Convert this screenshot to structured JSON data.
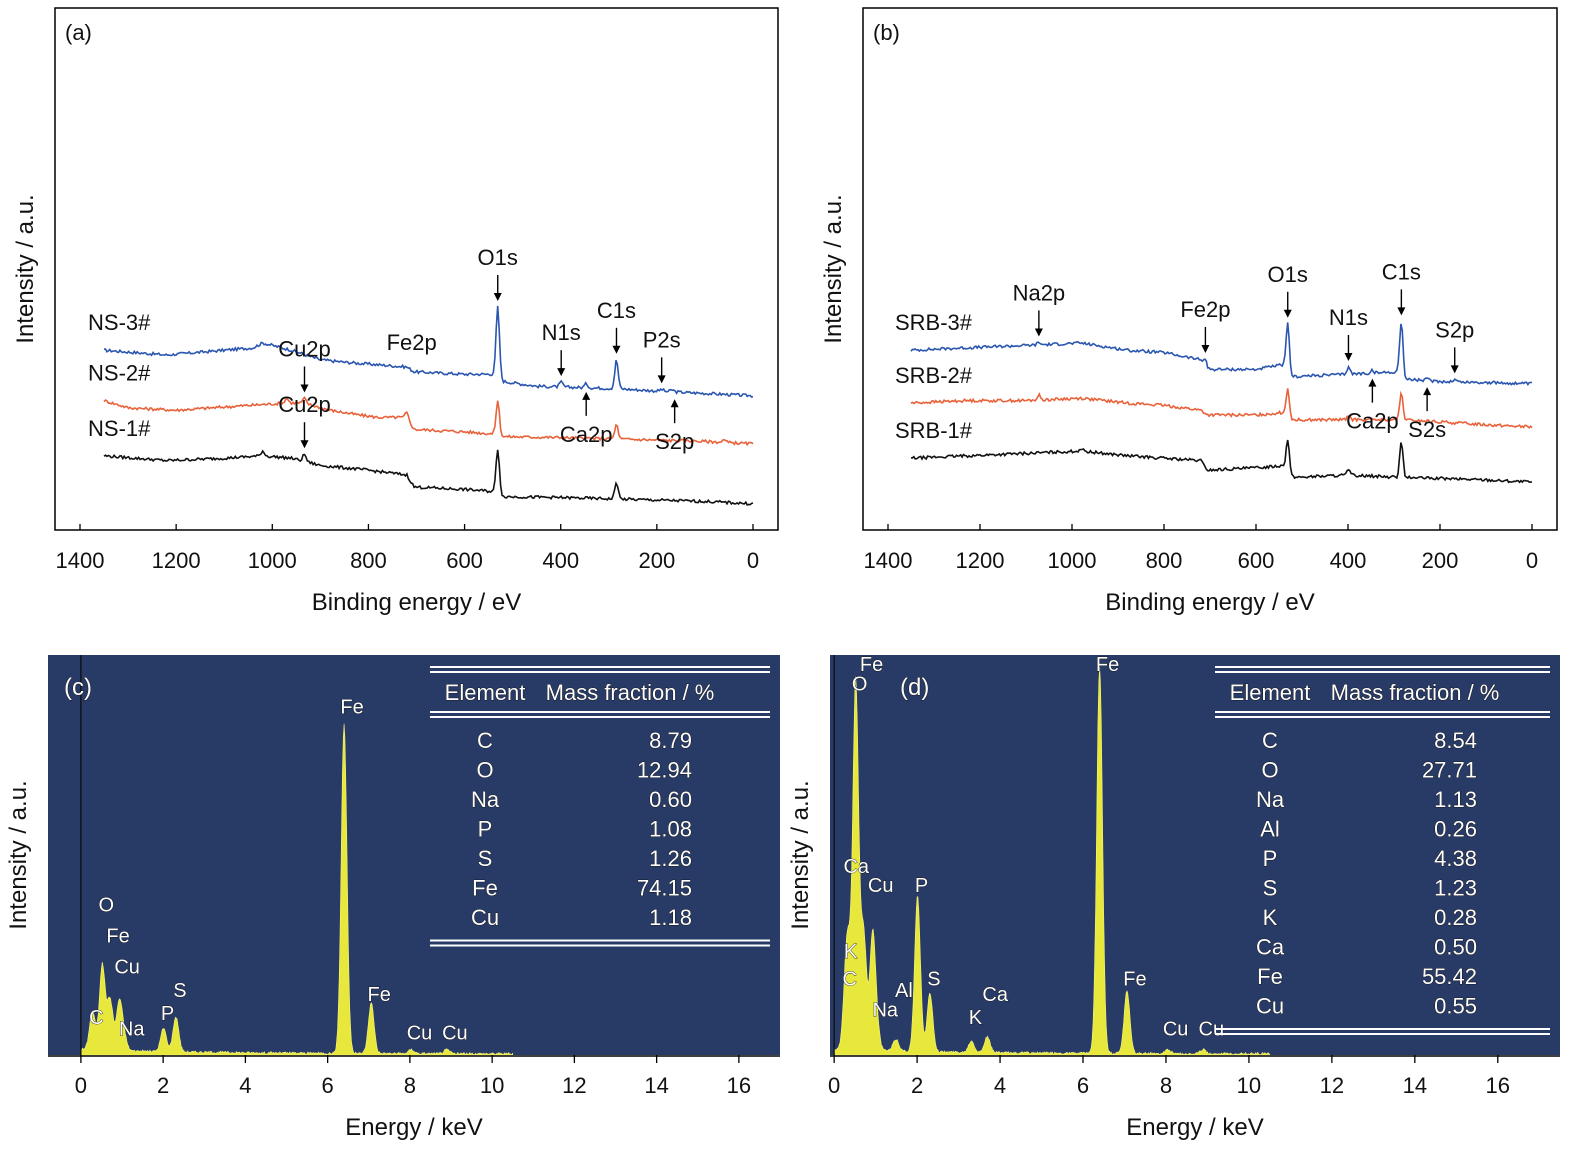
{
  "chart_data": [
    {
      "panel": "(a)",
      "type": "line",
      "xlabel": "Binding energy / eV",
      "ylabel": "Intensity / a.u.",
      "xlim": [
        1400,
        0
      ],
      "x_reversed": true,
      "xticks": [
        1400,
        1200,
        1000,
        800,
        600,
        400,
        200,
        0
      ],
      "series": [
        {
          "name": "NS-3#",
          "color": "#2a56b0",
          "offset": 2.6,
          "features": [
            [
              1350,
              0
            ],
            [
              1220,
              -0.1
            ],
            [
              1040,
              0.05
            ],
            [
              1020,
              0.15
            ],
            [
              960,
              0.0
            ],
            [
              900,
              -0.2
            ],
            [
              850,
              -0.25
            ],
            [
              720,
              -0.35
            ],
            [
              705,
              -0.45
            ],
            [
              600,
              -0.5
            ],
            [
              531,
              -0.5
            ],
            [
              520,
              -0.65
            ],
            [
              450,
              -0.75
            ],
            [
              284,
              -0.8
            ],
            [
              200,
              -0.85
            ],
            [
              0,
              -0.95
            ]
          ],
          "peaks": [
            [
              531,
              1.4
            ],
            [
              399,
              0.1
            ],
            [
              347,
              0.08
            ],
            [
              284,
              0.6
            ],
            [
              190,
              0.04
            ],
            [
              168,
              0.04
            ]
          ]
        },
        {
          "name": "NS-2#",
          "color": "#e8623a",
          "offset": 1.5,
          "features": [
            [
              1350,
              0.05
            ],
            [
              1300,
              -0.1
            ],
            [
              1200,
              -0.15
            ],
            [
              1050,
              -0.05
            ],
            [
              970,
              0.0
            ],
            [
              935,
              0.0
            ],
            [
              880,
              -0.15
            ],
            [
              820,
              -0.25
            ],
            [
              780,
              -0.3
            ],
            [
              720,
              -0.3
            ],
            [
              705,
              -0.55
            ],
            [
              600,
              -0.6
            ],
            [
              531,
              -0.65
            ],
            [
              520,
              -0.7
            ],
            [
              400,
              -0.72
            ],
            [
              284,
              -0.75
            ],
            [
              100,
              -0.8
            ],
            [
              0,
              -0.85
            ]
          ],
          "peaks": [
            [
              970,
              0.1
            ],
            [
              933,
              0.1
            ],
            [
              720,
              0.1
            ],
            [
              531,
              0.7
            ],
            [
              284,
              0.3
            ],
            [
              60,
              0.05
            ]
          ]
        },
        {
          "name": "NS-1#",
          "color": "#111111",
          "offset": 0.35,
          "features": [
            [
              1350,
              0.05
            ],
            [
              1220,
              -0.05
            ],
            [
              1100,
              0.0
            ],
            [
              1020,
              0.05
            ],
            [
              960,
              0.0
            ],
            [
              900,
              -0.15
            ],
            [
              800,
              -0.25
            ],
            [
              720,
              -0.35
            ],
            [
              705,
              -0.6
            ],
            [
              600,
              -0.65
            ],
            [
              531,
              -0.7
            ],
            [
              520,
              -0.8
            ],
            [
              400,
              -0.82
            ],
            [
              284,
              -0.85
            ],
            [
              100,
              -0.9
            ],
            [
              0,
              -0.95
            ]
          ],
          "peaks": [
            [
              1020,
              0.1
            ],
            [
              933,
              0.15
            ],
            [
              531,
              0.9
            ],
            [
              284,
              0.35
            ]
          ]
        }
      ],
      "annotations": [
        {
          "text": "O1s",
          "x": 531,
          "dir": "down"
        },
        {
          "text": "Fe2p",
          "x": 710,
          "dir": "none"
        },
        {
          "text": "N1s",
          "x": 399,
          "dir": "down"
        },
        {
          "text": "C1s",
          "x": 284,
          "dir": "down"
        },
        {
          "text": "P2s",
          "x": 190,
          "dir": "down"
        },
        {
          "text": "Ca2p",
          "x": 347,
          "dir": "up"
        },
        {
          "text": "S2p",
          "x": 163,
          "dir": "up"
        },
        {
          "text": "Cu2p",
          "x": 933,
          "dir": "down"
        },
        {
          "text": "Cu2p",
          "x": 933,
          "dir": "down"
        }
      ]
    },
    {
      "panel": "(b)",
      "type": "line",
      "xlabel": "Binding energy / eV",
      "ylabel": "Intensity / a.u.",
      "xlim": [
        1400,
        0
      ],
      "x_reversed": true,
      "xticks": [
        1400,
        1200,
        1000,
        800,
        600,
        400,
        200,
        0
      ],
      "series": [
        {
          "name": "SRB-3#",
          "color": "#2a56b0",
          "offset": 2.6,
          "features": [
            [
              1350,
              0
            ],
            [
              1230,
              0.05
            ],
            [
              1100,
              0.1
            ],
            [
              980,
              0.15
            ],
            [
              880,
              0.0
            ],
            [
              800,
              -0.05
            ],
            [
              720,
              -0.2
            ],
            [
              705,
              -0.4
            ],
            [
              600,
              -0.4
            ],
            [
              540,
              -0.3
            ],
            [
              531,
              -0.45
            ],
            [
              520,
              -0.55
            ],
            [
              400,
              -0.5
            ],
            [
              290,
              -0.45
            ],
            [
              284,
              -0.6
            ],
            [
              200,
              -0.65
            ],
            [
              0,
              -0.7
            ]
          ],
          "peaks": [
            [
              1072,
              0.05
            ],
            [
              710,
              0.15
            ],
            [
              531,
              1.0
            ],
            [
              399,
              0.15
            ],
            [
              347,
              0.05
            ],
            [
              284,
              1.2
            ],
            [
              228,
              0.03
            ],
            [
              168,
              0.05
            ]
          ]
        },
        {
          "name": "SRB-2#",
          "color": "#e8623a",
          "offset": 1.5,
          "features": [
            [
              1350,
              0
            ],
            [
              1230,
              0.05
            ],
            [
              1100,
              0.05
            ],
            [
              980,
              0.1
            ],
            [
              880,
              0.0
            ],
            [
              800,
              -0.05
            ],
            [
              720,
              -0.15
            ],
            [
              705,
              -0.25
            ],
            [
              600,
              -0.25
            ],
            [
              540,
              -0.2
            ],
            [
              531,
              -0.3
            ],
            [
              520,
              -0.35
            ],
            [
              400,
              -0.35
            ],
            [
              284,
              -0.35
            ],
            [
              100,
              -0.45
            ],
            [
              0,
              -0.5
            ]
          ],
          "peaks": [
            [
              1072,
              0.1
            ],
            [
              531,
              0.6
            ],
            [
              399,
              0.1
            ],
            [
              284,
              0.55
            ]
          ]
        },
        {
          "name": "SRB-1#",
          "color": "#111111",
          "offset": 0.35,
          "features": [
            [
              1350,
              0
            ],
            [
              1230,
              0.05
            ],
            [
              1100,
              0.1
            ],
            [
              980,
              0.15
            ],
            [
              880,
              0.05
            ],
            [
              800,
              0.0
            ],
            [
              720,
              -0.05
            ],
            [
              705,
              -0.25
            ],
            [
              600,
              -0.2
            ],
            [
              540,
              -0.15
            ],
            [
              531,
              -0.3
            ],
            [
              520,
              -0.4
            ],
            [
              400,
              -0.35
            ],
            [
              284,
              -0.4
            ],
            [
              100,
              -0.45
            ],
            [
              0,
              -0.5
            ]
          ],
          "peaks": [
            [
              980,
              0.05
            ],
            [
              531,
              0.7
            ],
            [
              399,
              0.1
            ],
            [
              284,
              0.75
            ]
          ]
        }
      ],
      "annotations": [
        {
          "text": "Na2p",
          "x": 1072,
          "dir": "down"
        },
        {
          "text": "Fe2p",
          "x": 710,
          "dir": "down"
        },
        {
          "text": "O1s",
          "x": 531,
          "dir": "down"
        },
        {
          "text": "N1s",
          "x": 399,
          "dir": "down"
        },
        {
          "text": "C1s",
          "x": 284,
          "dir": "down"
        },
        {
          "text": "S2p",
          "x": 168,
          "dir": "down"
        },
        {
          "text": "Ca2p",
          "x": 347,
          "dir": "up"
        },
        {
          "text": "S2s",
          "x": 228,
          "dir": "up"
        }
      ]
    },
    {
      "panel": "(c)",
      "type": "area",
      "xlabel": "Energy / keV",
      "ylabel": "Intensity / a.u.",
      "xlim": [
        -0.8,
        17
      ],
      "xticks": [
        0,
        2,
        4,
        6,
        8,
        10,
        12,
        14,
        16
      ],
      "background": "#283a66",
      "fill": "#e8e83c",
      "peaks": [
        [
          0.28,
          0.1
        ],
        [
          0.52,
          0.22
        ],
        [
          0.71,
          0.13
        ],
        [
          0.93,
          0.12
        ],
        [
          1.04,
          0.04
        ],
        [
          2.01,
          0.06
        ],
        [
          2.31,
          0.09
        ],
        [
          6.4,
          0.85
        ],
        [
          7.06,
          0.13
        ],
        [
          8.04,
          0.01
        ],
        [
          8.9,
          0.01
        ]
      ],
      "peak_labels": [
        {
          "text": "O",
          "x": 0.52,
          "level": 0.38
        },
        {
          "text": "Fe",
          "x": 0.71,
          "level": 0.3
        },
        {
          "text": "Cu",
          "x": 0.93,
          "level": 0.22
        },
        {
          "text": "C",
          "x": 0.28,
          "level": 0.09
        },
        {
          "text": "Na",
          "x": 1.04,
          "level": 0.06
        },
        {
          "text": "P",
          "x": 2.01,
          "level": 0.1
        },
        {
          "text": "S",
          "x": 2.31,
          "level": 0.16
        },
        {
          "text": "Fe",
          "x": 6.4,
          "level": 0.89
        },
        {
          "text": "Fe",
          "x": 7.06,
          "level": 0.15
        },
        {
          "text": "Cu",
          "x": 8.04,
          "level": 0.05
        },
        {
          "text": "Cu",
          "x": 8.9,
          "level": 0.05
        }
      ],
      "table": {
        "headers": [
          "Element",
          "Mass fraction / %"
        ],
        "rows": [
          [
            "C",
            "8.79"
          ],
          [
            "O",
            "12.94"
          ],
          [
            "Na",
            "0.60"
          ],
          [
            "P",
            "1.08"
          ],
          [
            "S",
            "1.26"
          ],
          [
            "Fe",
            "74.15"
          ],
          [
            "Cu",
            "1.18"
          ]
        ]
      }
    },
    {
      "panel": "(d)",
      "type": "area",
      "xlabel": "Energy / keV",
      "ylabel": "Intensity / a.u.",
      "xlim": [
        -0.1,
        17.5
      ],
      "xticks": [
        0,
        2,
        4,
        6,
        8,
        10,
        12,
        14,
        16
      ],
      "background": "#283a66",
      "fill": "#e8e83c",
      "peaks": [
        [
          0.28,
          0.12
        ],
        [
          0.34,
          0.2
        ],
        [
          0.52,
          0.95
        ],
        [
          0.71,
          0.3
        ],
        [
          0.93,
          0.3
        ],
        [
          1.04,
          0.04
        ],
        [
          1.49,
          0.03
        ],
        [
          2.01,
          0.4
        ],
        [
          2.31,
          0.15
        ],
        [
          3.31,
          0.03
        ],
        [
          3.69,
          0.04
        ],
        [
          6.4,
          1.0
        ],
        [
          7.06,
          0.16
        ],
        [
          8.04,
          0.01
        ],
        [
          8.9,
          0.01
        ]
      ],
      "peak_labels": [
        {
          "text": "Fe",
          "x": 0.71,
          "level": 1.0
        },
        {
          "text": "O",
          "x": 0.52,
          "level": 0.95
        },
        {
          "text": "Ca",
          "x": 0.34,
          "level": 0.48
        },
        {
          "text": "Cu",
          "x": 0.93,
          "level": 0.43
        },
        {
          "text": "K",
          "x": 0.3,
          "level": 0.26
        },
        {
          "text": "C",
          "x": 0.28,
          "level": 0.19
        },
        {
          "text": "Na",
          "x": 1.04,
          "level": 0.11
        },
        {
          "text": "Al",
          "x": 1.49,
          "level": 0.16
        },
        {
          "text": "P",
          "x": 2.01,
          "level": 0.43
        },
        {
          "text": "S",
          "x": 2.31,
          "level": 0.19
        },
        {
          "text": "K",
          "x": 3.31,
          "level": 0.09
        },
        {
          "text": "Ca",
          "x": 3.69,
          "level": 0.15
        },
        {
          "text": "Fe",
          "x": 6.4,
          "level": 1.0
        },
        {
          "text": "Fe",
          "x": 7.06,
          "level": 0.19
        },
        {
          "text": "Cu",
          "x": 8.04,
          "level": 0.06
        },
        {
          "text": "Cu",
          "x": 8.9,
          "level": 0.06
        }
      ],
      "table": {
        "headers": [
          "Element",
          "Mass fraction / %"
        ],
        "rows": [
          [
            "C",
            "8.54"
          ],
          [
            "O",
            "27.71"
          ],
          [
            "Na",
            "1.13"
          ],
          [
            "Al",
            "0.26"
          ],
          [
            "P",
            "4.38"
          ],
          [
            "S",
            "1.23"
          ],
          [
            "K",
            "0.28"
          ],
          [
            "Ca",
            "0.50"
          ],
          [
            "Fe",
            "55.42"
          ],
          [
            "Cu",
            "0.55"
          ]
        ]
      }
    }
  ]
}
